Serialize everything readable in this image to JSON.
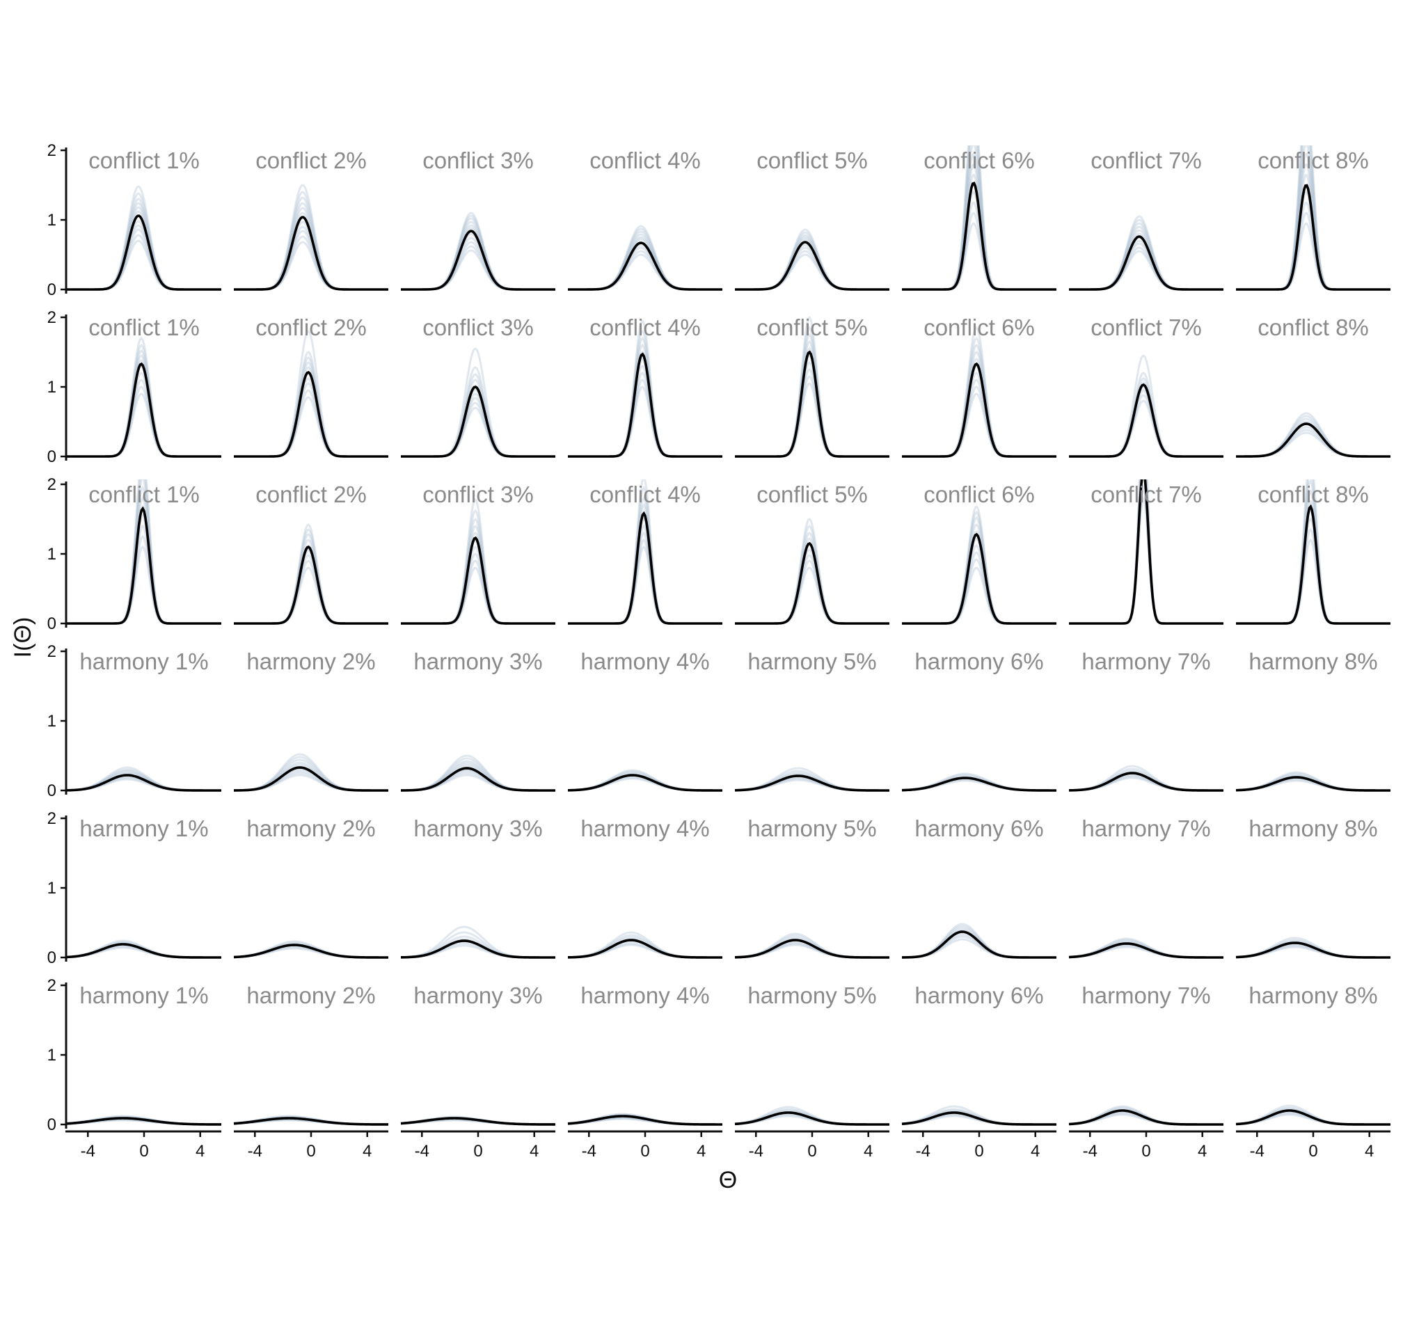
{
  "chart_data": {
    "type": "line",
    "xlabel": "Θ",
    "ylabel": "I(Θ)",
    "xlim": [
      -5.5,
      5.5
    ],
    "ylim": [
      0,
      2.1
    ],
    "x_ticks": [
      -4,
      0,
      4
    ],
    "x_tick_labels": [
      "-4",
      "0",
      "4"
    ],
    "y_ticks": [
      0,
      1,
      2
    ],
    "y_tick_labels": [
      "0",
      "1",
      "2"
    ],
    "legend": "none",
    "grid": false,
    "colors": {
      "mean_line": "#000000",
      "replicates": "#9fb3cb"
    },
    "curve_model": "item information peak: height × exp(−(x − center)² / (2·width²))",
    "panels": [
      [
        {
          "title": "conflict 1%",
          "peak": 1.06,
          "center": -0.4,
          "width": 0.75,
          "replicates": [
            0.7,
            0.78,
            0.86,
            0.92,
            0.98,
            1.06,
            1.12,
            1.18,
            1.24,
            1.3,
            1.38,
            1.48
          ]
        },
        {
          "title": "conflict 2%",
          "peak": 1.04,
          "center": -0.6,
          "width": 0.78,
          "replicates": [
            0.68,
            0.76,
            0.84,
            0.9,
            0.97,
            1.04,
            1.1,
            1.17,
            1.24,
            1.32,
            1.4,
            1.5
          ]
        },
        {
          "title": "conflict 3%",
          "peak": 0.84,
          "center": -0.5,
          "width": 0.85,
          "replicates": [
            0.56,
            0.62,
            0.68,
            0.74,
            0.8,
            0.84,
            0.88,
            0.92,
            0.97,
            1.02,
            1.06,
            1.1
          ]
        },
        {
          "title": "conflict 4%",
          "peak": 0.67,
          "center": -0.3,
          "width": 0.95,
          "replicates": [
            0.5,
            0.55,
            0.6,
            0.64,
            0.68,
            0.72,
            0.75,
            0.79,
            0.83,
            0.87,
            0.91
          ]
        },
        {
          "title": "conflict 5%",
          "peak": 0.68,
          "center": -0.5,
          "width": 0.9,
          "replicates": [
            0.5,
            0.55,
            0.6,
            0.64,
            0.68,
            0.72,
            0.75,
            0.78,
            0.82,
            0.86
          ]
        },
        {
          "title": "conflict 6%",
          "peak": 1.53,
          "center": -0.4,
          "width": 0.5,
          "replicates": [
            0.95,
            1.1,
            1.25,
            1.4,
            1.53,
            1.65,
            1.8,
            1.95,
            2.1,
            2.3,
            2.5,
            2.7
          ]
        },
        {
          "title": "conflict 7%",
          "peak": 0.76,
          "center": -0.5,
          "width": 0.85,
          "replicates": [
            0.55,
            0.6,
            0.66,
            0.7,
            0.75,
            0.8,
            0.85,
            0.9,
            0.95,
            1.0,
            1.05
          ]
        },
        {
          "title": "conflict 8%",
          "peak": 1.5,
          "center": -0.5,
          "width": 0.5,
          "replicates": [
            0.95,
            1.1,
            1.25,
            1.4,
            1.5,
            1.65,
            1.8,
            1.95,
            2.1,
            2.3,
            2.5,
            2.7
          ]
        }
      ],
      [
        {
          "title": "conflict 1%",
          "peak": 1.33,
          "center": -0.2,
          "width": 0.6,
          "replicates": [
            0.9,
            1.0,
            1.1,
            1.2,
            1.3,
            1.38,
            1.45,
            1.52,
            1.6,
            1.7
          ]
        },
        {
          "title": "conflict 2%",
          "peak": 1.21,
          "center": -0.2,
          "width": 0.65,
          "replicates": [
            0.85,
            0.95,
            1.05,
            1.12,
            1.2,
            1.28,
            1.35,
            1.42,
            1.5,
            1.8
          ]
        },
        {
          "title": "conflict 3%",
          "peak": 1.0,
          "center": -0.2,
          "width": 0.7,
          "replicates": [
            0.7,
            0.77,
            0.84,
            0.9,
            0.96,
            1.02,
            1.1,
            1.18,
            1.28,
            1.55
          ]
        },
        {
          "title": "conflict 4%",
          "peak": 1.47,
          "center": -0.2,
          "width": 0.55,
          "replicates": [
            1.0,
            1.1,
            1.2,
            1.3,
            1.4,
            1.5,
            1.6,
            1.7,
            1.8,
            1.95
          ]
        },
        {
          "title": "conflict 5%",
          "peak": 1.5,
          "center": -0.2,
          "width": 0.55,
          "replicates": [
            1.05,
            1.15,
            1.25,
            1.35,
            1.45,
            1.55,
            1.65,
            1.75,
            1.85,
            2.0
          ]
        },
        {
          "title": "conflict 6%",
          "peak": 1.33,
          "center": -0.2,
          "width": 0.6,
          "replicates": [
            0.9,
            1.0,
            1.1,
            1.2,
            1.3,
            1.4,
            1.5,
            1.6,
            1.7,
            1.85
          ]
        },
        {
          "title": "conflict 7%",
          "peak": 1.03,
          "center": -0.2,
          "width": 0.65,
          "replicates": [
            0.8,
            0.88,
            0.95,
            1.0,
            1.06,
            1.12,
            1.2,
            1.45
          ]
        },
        {
          "title": "conflict 8%",
          "peak": 0.47,
          "center": -0.5,
          "width": 1.1,
          "replicates": [
            0.34,
            0.38,
            0.42,
            0.46,
            0.5,
            0.54,
            0.58,
            0.62
          ]
        }
      ],
      [
        {
          "title": "conflict 1%",
          "peak": 1.65,
          "center": -0.1,
          "width": 0.48,
          "replicates": [
            1.1,
            1.25,
            1.4,
            1.55,
            1.68,
            1.8,
            1.95,
            2.1,
            2.25,
            2.4
          ]
        },
        {
          "title": "conflict 2%",
          "peak": 1.1,
          "center": -0.2,
          "width": 0.62,
          "replicates": [
            0.8,
            0.9,
            0.98,
            1.05,
            1.12,
            1.2,
            1.28,
            1.35,
            1.42
          ]
        },
        {
          "title": "conflict 3%",
          "peak": 1.23,
          "center": -0.2,
          "width": 0.55,
          "replicates": [
            0.8,
            0.9,
            1.0,
            1.1,
            1.2,
            1.3,
            1.4,
            1.5,
            1.62,
            1.78
          ]
        },
        {
          "title": "conflict 4%",
          "peak": 1.58,
          "center": -0.1,
          "width": 0.48,
          "replicates": [
            1.1,
            1.2,
            1.3,
            1.4,
            1.5,
            1.6,
            1.7,
            1.8,
            1.95,
            2.1
          ]
        },
        {
          "title": "conflict 5%",
          "peak": 1.15,
          "center": -0.2,
          "width": 0.6,
          "replicates": [
            0.8,
            0.9,
            0.98,
            1.06,
            1.14,
            1.22,
            1.3,
            1.4,
            1.5
          ]
        },
        {
          "title": "conflict 6%",
          "peak": 1.28,
          "center": -0.2,
          "width": 0.58,
          "replicates": [
            0.8,
            0.92,
            1.02,
            1.12,
            1.22,
            1.32,
            1.42,
            1.52,
            1.6,
            1.68
          ]
        },
        {
          "title": "conflict 7%",
          "peak": 2.2,
          "center": -0.2,
          "width": 0.35,
          "replicates": [
            1.8,
            1.95,
            2.1,
            2.25,
            2.4,
            2.6,
            2.8
          ]
        },
        {
          "title": "conflict 8%",
          "peak": 1.68,
          "center": -0.2,
          "width": 0.45,
          "replicates": [
            1.2,
            1.35,
            1.5,
            1.62,
            1.75,
            1.9,
            2.05,
            2.2,
            2.4
          ]
        }
      ],
      [
        {
          "title": "harmony 1%",
          "peak": 0.22,
          "center": -1.2,
          "width": 1.4,
          "replicates": [
            0.16,
            0.18,
            0.2,
            0.22,
            0.24,
            0.26,
            0.28,
            0.3,
            0.33
          ]
        },
        {
          "title": "harmony 2%",
          "peak": 0.33,
          "center": -0.8,
          "width": 1.3,
          "replicates": [
            0.22,
            0.25,
            0.28,
            0.31,
            0.34,
            0.37,
            0.4,
            0.44,
            0.48,
            0.52
          ]
        },
        {
          "title": "harmony 3%",
          "peak": 0.32,
          "center": -0.8,
          "width": 1.3,
          "replicates": [
            0.22,
            0.25,
            0.28,
            0.3,
            0.33,
            0.36,
            0.39,
            0.42,
            0.46,
            0.5
          ]
        },
        {
          "title": "harmony 4%",
          "peak": 0.22,
          "center": -0.9,
          "width": 1.5,
          "replicates": [
            0.17,
            0.19,
            0.21,
            0.23,
            0.25,
            0.27,
            0.29
          ]
        },
        {
          "title": "harmony 5%",
          "peak": 0.21,
          "center": -1.0,
          "width": 1.5,
          "replicates": [
            0.15,
            0.17,
            0.19,
            0.21,
            0.23,
            0.25,
            0.28,
            0.32
          ]
        },
        {
          "title": "harmony 6%",
          "peak": 0.18,
          "center": -1.0,
          "width": 1.6,
          "replicates": [
            0.14,
            0.16,
            0.18,
            0.2,
            0.22,
            0.24
          ]
        },
        {
          "title": "harmony 7%",
          "peak": 0.25,
          "center": -1.0,
          "width": 1.4,
          "replicates": [
            0.18,
            0.2,
            0.22,
            0.24,
            0.26,
            0.28,
            0.31,
            0.35
          ]
        },
        {
          "title": "harmony 8%",
          "peak": 0.19,
          "center": -1.2,
          "width": 1.5,
          "replicates": [
            0.14,
            0.16,
            0.18,
            0.2,
            0.22,
            0.24,
            0.26
          ]
        }
      ],
      [
        {
          "title": "harmony 1%",
          "peak": 0.19,
          "center": -1.5,
          "width": 1.5,
          "replicates": [
            0.14,
            0.16,
            0.18,
            0.2,
            0.22,
            0.24
          ]
        },
        {
          "title": "harmony 2%",
          "peak": 0.18,
          "center": -1.2,
          "width": 1.6,
          "replicates": [
            0.13,
            0.15,
            0.17,
            0.19,
            0.21,
            0.23
          ]
        },
        {
          "title": "harmony 3%",
          "peak": 0.24,
          "center": -1.0,
          "width": 1.4,
          "replicates": [
            0.17,
            0.2,
            0.23,
            0.26,
            0.3,
            0.36,
            0.44
          ]
        },
        {
          "title": "harmony 4%",
          "peak": 0.25,
          "center": -1.0,
          "width": 1.4,
          "replicates": [
            0.18,
            0.2,
            0.23,
            0.26,
            0.29,
            0.32,
            0.36
          ]
        },
        {
          "title": "harmony 5%",
          "peak": 0.25,
          "center": -1.2,
          "width": 1.4,
          "replicates": [
            0.18,
            0.2,
            0.22,
            0.25,
            0.28,
            0.31,
            0.34
          ]
        },
        {
          "title": "harmony 6%",
          "peak": 0.37,
          "center": -1.2,
          "width": 1.2,
          "replicates": [
            0.26,
            0.3,
            0.33,
            0.36,
            0.39,
            0.42,
            0.45,
            0.48
          ]
        },
        {
          "title": "harmony 7%",
          "peak": 0.2,
          "center": -1.4,
          "width": 1.5,
          "replicates": [
            0.15,
            0.17,
            0.19,
            0.21,
            0.23,
            0.25,
            0.27
          ]
        },
        {
          "title": "harmony 8%",
          "peak": 0.21,
          "center": -1.3,
          "width": 1.5,
          "replicates": [
            0.15,
            0.17,
            0.19,
            0.21,
            0.23,
            0.25,
            0.28
          ]
        }
      ],
      [
        {
          "title": "harmony 1%",
          "peak": 0.09,
          "center": -1.5,
          "width": 2.0,
          "replicates": [
            0.06,
            0.07,
            0.08,
            0.09,
            0.1,
            0.11,
            0.12
          ]
        },
        {
          "title": "harmony 2%",
          "peak": 0.09,
          "center": -1.6,
          "width": 2.0,
          "replicates": [
            0.06,
            0.07,
            0.08,
            0.09,
            0.1,
            0.11,
            0.12
          ]
        },
        {
          "title": "harmony 3%",
          "peak": 0.09,
          "center": -1.7,
          "width": 2.0,
          "replicates": [
            0.06,
            0.07,
            0.08,
            0.09,
            0.1,
            0.11
          ]
        },
        {
          "title": "harmony 4%",
          "peak": 0.12,
          "center": -1.6,
          "width": 1.8,
          "replicates": [
            0.08,
            0.09,
            0.1,
            0.11,
            0.12,
            0.13,
            0.14,
            0.15
          ]
        },
        {
          "title": "harmony 5%",
          "peak": 0.17,
          "center": -1.7,
          "width": 1.5,
          "replicates": [
            0.12,
            0.14,
            0.16,
            0.18,
            0.2,
            0.22,
            0.25
          ]
        },
        {
          "title": "harmony 6%",
          "peak": 0.17,
          "center": -1.8,
          "width": 1.5,
          "replicates": [
            0.12,
            0.14,
            0.16,
            0.18,
            0.2,
            0.22,
            0.26
          ]
        },
        {
          "title": "harmony 7%",
          "peak": 0.2,
          "center": -1.7,
          "width": 1.4,
          "replicates": [
            0.14,
            0.16,
            0.18,
            0.2,
            0.22,
            0.24,
            0.26
          ]
        },
        {
          "title": "harmony 8%",
          "peak": 0.2,
          "center": -1.7,
          "width": 1.4,
          "replicates": [
            0.14,
            0.16,
            0.18,
            0.2,
            0.22,
            0.24,
            0.27
          ]
        }
      ]
    ]
  }
}
